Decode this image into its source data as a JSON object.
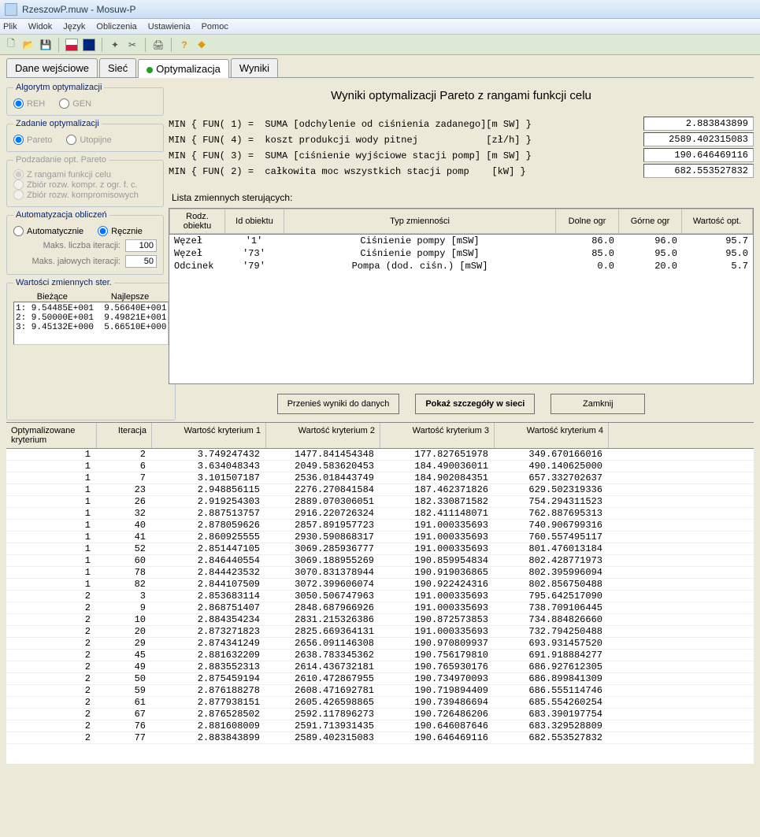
{
  "window": {
    "title": "RzeszowP.muw - Mosuw-P"
  },
  "menu": [
    "Plik",
    "Widok",
    "Język",
    "Obliczenia",
    "Ustawienia",
    "Pomoc"
  ],
  "tabs": [
    {
      "label": "Dane wejściowe",
      "active": false
    },
    {
      "label": "Sieć",
      "active": false
    },
    {
      "label": "Optymalizacja",
      "active": true,
      "dot": true
    },
    {
      "label": "Wyniki",
      "active": false
    }
  ],
  "left": {
    "algo": {
      "legend": "Algorytm optymalizacji",
      "opts": [
        "REH",
        "GEN"
      ],
      "sel": 0
    },
    "task": {
      "legend": "Zadanie optymalizacji",
      "opts": [
        "Pareto",
        "Utopijne"
      ],
      "sel": 0
    },
    "pareto": {
      "legend": "Podzadanie opt. Pareto",
      "opts": [
        "Z rangami funkcji celu",
        "Zbiór rozw. kompr. z ogr. f. c.",
        "Zbiór rozw. kompromisowych"
      ],
      "sel": 0
    },
    "auto": {
      "legend": "Automatyzacja obliczeń",
      "opts": [
        "Automatycznie",
        "Ręcznie"
      ],
      "sel": 1,
      "maxIterLabel": "Maks. liczba iteracji:",
      "maxIter": "100",
      "maxIdleLabel": "Maks. jałowych iteracji:",
      "maxIdle": "50"
    },
    "sv": {
      "legend": "Wartości zmiennych ster.",
      "h1": "Bieżące",
      "h2": "Najlepsze",
      "rows": [
        [
          "1:",
          "9.54485E+001",
          "9.56640E+001"
        ],
        [
          "2:",
          "9.50000E+001",
          "9.49821E+001"
        ],
        [
          "3:",
          "9.45132E+000",
          "5.66510E+000"
        ]
      ]
    }
  },
  "panel": {
    "title": "Wyniki optymalizacji Pareto z rangami funkcji celu",
    "funs": [
      "MIN { FUN( 1) =  SUMA [odchylenie od ciśnienia zadanego][m SW] }",
      "MIN { FUN( 4) =  koszt produkcji wody pitnej            [zł/h] }",
      "MIN { FUN( 3) =  SUMA [ciśnienie wyjściowe stacji pomp] [m SW] }",
      "MIN { FUN( 2) =  całkowita moc wszystkich stacji pomp    [kW] }"
    ],
    "vals": [
      "2.883843899",
      "2589.402315083",
      "190.646469116",
      "682.553527832"
    ],
    "listTitle": "Lista zmiennych sterujących:",
    "varCols": [
      "Rodz. obiektu",
      "Id obiektu",
      "Typ zmienności",
      "Dolne ogr",
      "Górne ogr",
      "Wartość opt."
    ],
    "varRows": [
      [
        "Węzeł",
        "'1'",
        "Ciśnienie pompy [mSW]",
        "86.0",
        "96.0",
        "95.7"
      ],
      [
        "Węzeł",
        "'73'",
        "Ciśnienie pompy [mSW]",
        "85.0",
        "95.0",
        "95.0"
      ],
      [
        "Odcinek",
        "'79'",
        "Pompa (dod. ciśn.) [mSW]",
        "0.0",
        "20.0",
        "5.7"
      ]
    ],
    "buttons": {
      "move": "Przenieś wyniki do danych",
      "show": "Pokaż szczegóły w sieci",
      "close": "Zamknij"
    }
  },
  "results": {
    "cols": [
      "Optymalizowane kryterium",
      "Iteracja",
      "Wartość kryterium 1",
      "Wartość kryterium 2",
      "Wartość kryterium 3",
      "Wartość kryterium 4"
    ],
    "rows": [
      [
        "1",
        "2",
        "3.749247432",
        "1477.841454348",
        "177.827651978",
        "349.670166016"
      ],
      [
        "1",
        "6",
        "3.634048343",
        "2049.583620453",
        "184.490036011",
        "490.140625000"
      ],
      [
        "1",
        "7",
        "3.101507187",
        "2536.018443749",
        "184.902084351",
        "657.332702637"
      ],
      [
        "1",
        "23",
        "2.948856115",
        "2276.270841584",
        "187.462371826",
        "629.502319336"
      ],
      [
        "1",
        "26",
        "2.919254303",
        "2889.070306051",
        "182.330871582",
        "754.294311523"
      ],
      [
        "1",
        "32",
        "2.887513757",
        "2916.220726324",
        "182.411148071",
        "762.887695313"
      ],
      [
        "1",
        "40",
        "2.878059626",
        "2857.891957723",
        "191.000335693",
        "740.906799316"
      ],
      [
        "1",
        "41",
        "2.860925555",
        "2930.590868317",
        "191.000335693",
        "760.557495117"
      ],
      [
        "1",
        "52",
        "2.851447105",
        "3069.285936777",
        "191.000335693",
        "801.476013184"
      ],
      [
        "1",
        "60",
        "2.846440554",
        "3069.188955269",
        "190.859954834",
        "802.428771973"
      ],
      [
        "1",
        "78",
        "2.844423532",
        "3070.831378944",
        "190.919036865",
        "802.395996094"
      ],
      [
        "1",
        "82",
        "2.844107509",
        "3072.399606074",
        "190.922424316",
        "802.856750488"
      ],
      [
        "2",
        "3",
        "2.853683114",
        "3050.506747963",
        "191.000335693",
        "795.642517090"
      ],
      [
        "2",
        "9",
        "2.868751407",
        "2848.687966926",
        "191.000335693",
        "738.709106445"
      ],
      [
        "2",
        "10",
        "2.884354234",
        "2831.215326386",
        "190.872573853",
        "734.884826660"
      ],
      [
        "2",
        "20",
        "2.873271823",
        "2825.669364131",
        "191.000335693",
        "732.794250488"
      ],
      [
        "2",
        "29",
        "2.874341249",
        "2656.091146308",
        "190.970809937",
        "693.931457520"
      ],
      [
        "2",
        "45",
        "2.881632209",
        "2638.783345362",
        "190.756179810",
        "691.918884277"
      ],
      [
        "2",
        "49",
        "2.883552313",
        "2614.436732181",
        "190.765930176",
        "686.927612305"
      ],
      [
        "2",
        "50",
        "2.875459194",
        "2610.472867955",
        "190.734970093",
        "686.899841309"
      ],
      [
        "2",
        "59",
        "2.876188278",
        "2608.471692781",
        "190.719894409",
        "686.555114746"
      ],
      [
        "2",
        "61",
        "2.877938151",
        "2605.426598865",
        "190.739486694",
        "685.554260254"
      ],
      [
        "2",
        "67",
        "2.876528502",
        "2592.117896273",
        "190.726486206",
        "683.390197754"
      ],
      [
        "2",
        "76",
        "2.881608009",
        "2591.713931435",
        "190.646087646",
        "683.329528809"
      ],
      [
        "2",
        "77",
        "2.883843899",
        "2589.402315083",
        "190.646469116",
        "682.553527832"
      ]
    ]
  },
  "colors": {
    "bg": "#ece9d8",
    "title": "#0a246a",
    "grid": "#c0c0c0"
  }
}
